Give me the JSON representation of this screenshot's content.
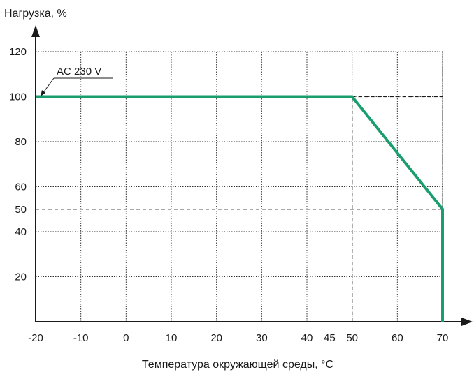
{
  "chart_data": {
    "type": "line",
    "title": "",
    "ylabel": "Нагрузка, %",
    "xlabel": "Температура окружающей среды, °C",
    "xlim": [
      -20,
      70
    ],
    "ylim": [
      0,
      120
    ],
    "x_ticks": [
      -20,
      -10,
      0,
      10,
      20,
      30,
      40,
      45,
      50,
      60,
      70
    ],
    "y_ticks": [
      20,
      40,
      50,
      60,
      80,
      100,
      120
    ],
    "grid": true,
    "series": [
      {
        "name": "AC 230 V",
        "color": "#1a9e6e",
        "points": [
          {
            "x": -20,
            "y": 100
          },
          {
            "x": 50,
            "y": 100
          },
          {
            "x": 70,
            "y": 50
          },
          {
            "x": 70,
            "y": 0
          }
        ]
      }
    ],
    "reference_lines": [
      {
        "type": "horizontal",
        "y": 100,
        "from_x": 50,
        "to_x": 70,
        "style": "dashed"
      },
      {
        "type": "horizontal",
        "y": 50,
        "from_x": -20,
        "to_x": 70,
        "style": "dashed"
      },
      {
        "type": "vertical",
        "x": 50,
        "from_y": 0,
        "to_y": 100,
        "style": "dashed"
      }
    ],
    "annotation": {
      "text": "AC 230 V",
      "series": "AC 230 V"
    }
  }
}
